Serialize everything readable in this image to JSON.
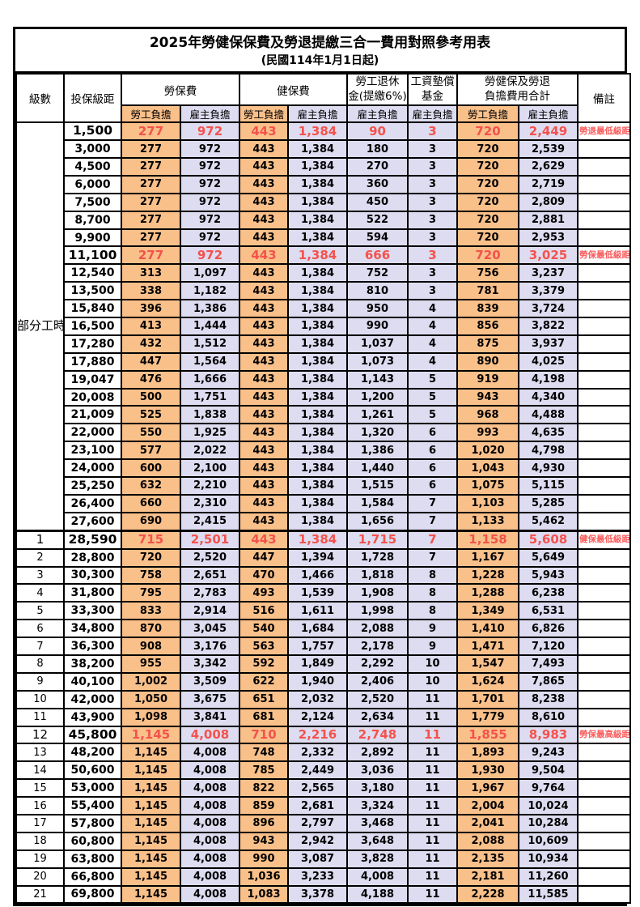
{
  "title": "2025年勞健保保費及勞退提繳三合一費用對照參考用表",
  "subtitle": "(民國114年1月1日起)",
  "colors": {
    "employee_bg": "#F9C08A",
    "employer_bg": "#DEDCF0",
    "highlight_text": "#F4524C",
    "remark_text": "#FB5A5A",
    "border": "#000000"
  },
  "table": {
    "headers": {
      "level": "級數",
      "bracket": "投保級距",
      "labor_ins": "勞保費",
      "health_ins": "健保費",
      "pension_line1": "勞工退休",
      "pension_line2": "金(提繳6%)",
      "wage_fund_line1": "工資墊償",
      "wage_fund_line2": "基金",
      "total_line1": "勞健保及勞退",
      "total_line2": "負擔費用合計",
      "remark": "備註",
      "employee": "勞工負擔",
      "employer": "雇主負擔"
    },
    "part_time_label": "部分工時",
    "part_time_rowspan": 23,
    "rows": [
      {
        "level": "",
        "bracket": "1,500",
        "values": [
          "277",
          "972",
          "443",
          "1,384",
          "90",
          "3",
          "720",
          "2,449"
        ],
        "remark": "勞退最低級距",
        "highlight": true
      },
      {
        "level": "",
        "bracket": "3,000",
        "values": [
          "277",
          "972",
          "443",
          "1,384",
          "180",
          "3",
          "720",
          "2,539"
        ],
        "remark": "",
        "highlight": false
      },
      {
        "level": "",
        "bracket": "4,500",
        "values": [
          "277",
          "972",
          "443",
          "1,384",
          "270",
          "3",
          "720",
          "2,629"
        ],
        "remark": "",
        "highlight": false
      },
      {
        "level": "",
        "bracket": "6,000",
        "values": [
          "277",
          "972",
          "443",
          "1,384",
          "360",
          "3",
          "720",
          "2,719"
        ],
        "remark": "",
        "highlight": false
      },
      {
        "level": "",
        "bracket": "7,500",
        "values": [
          "277",
          "972",
          "443",
          "1,384",
          "450",
          "3",
          "720",
          "2,809"
        ],
        "remark": "",
        "highlight": false
      },
      {
        "level": "",
        "bracket": "8,700",
        "values": [
          "277",
          "972",
          "443",
          "1,384",
          "522",
          "3",
          "720",
          "2,881"
        ],
        "remark": "",
        "highlight": false
      },
      {
        "level": "",
        "bracket": "9,900",
        "values": [
          "277",
          "972",
          "443",
          "1,384",
          "594",
          "3",
          "720",
          "2,953"
        ],
        "remark": "",
        "highlight": false
      },
      {
        "level": "",
        "bracket": "11,100",
        "values": [
          "277",
          "972",
          "443",
          "1,384",
          "666",
          "3",
          "720",
          "3,025"
        ],
        "remark": "勞保最低級距",
        "highlight": true
      },
      {
        "level": "",
        "bracket": "12,540",
        "values": [
          "313",
          "1,097",
          "443",
          "1,384",
          "752",
          "3",
          "756",
          "3,237"
        ],
        "remark": "",
        "highlight": false
      },
      {
        "level": "",
        "bracket": "13,500",
        "values": [
          "338",
          "1,182",
          "443",
          "1,384",
          "810",
          "3",
          "781",
          "3,379"
        ],
        "remark": "",
        "highlight": false
      },
      {
        "level": "",
        "bracket": "15,840",
        "values": [
          "396",
          "1,386",
          "443",
          "1,384",
          "950",
          "4",
          "839",
          "3,724"
        ],
        "remark": "",
        "highlight": false
      },
      {
        "level": "",
        "bracket": "16,500",
        "values": [
          "413",
          "1,444",
          "443",
          "1,384",
          "990",
          "4",
          "856",
          "3,822"
        ],
        "remark": "",
        "highlight": false
      },
      {
        "level": "",
        "bracket": "17,280",
        "values": [
          "432",
          "1,512",
          "443",
          "1,384",
          "1,037",
          "4",
          "875",
          "3,937"
        ],
        "remark": "",
        "highlight": false
      },
      {
        "level": "",
        "bracket": "17,880",
        "values": [
          "447",
          "1,564",
          "443",
          "1,384",
          "1,073",
          "4",
          "890",
          "4,025"
        ],
        "remark": "",
        "highlight": false
      },
      {
        "level": "",
        "bracket": "19,047",
        "values": [
          "476",
          "1,666",
          "443",
          "1,384",
          "1,143",
          "5",
          "919",
          "4,198"
        ],
        "remark": "",
        "highlight": false
      },
      {
        "level": "",
        "bracket": "20,008",
        "values": [
          "500",
          "1,751",
          "443",
          "1,384",
          "1,200",
          "5",
          "943",
          "4,340"
        ],
        "remark": "",
        "highlight": false
      },
      {
        "level": "",
        "bracket": "21,009",
        "values": [
          "525",
          "1,838",
          "443",
          "1,384",
          "1,261",
          "5",
          "968",
          "4,488"
        ],
        "remark": "",
        "highlight": false
      },
      {
        "level": "",
        "bracket": "22,000",
        "values": [
          "550",
          "1,925",
          "443",
          "1,384",
          "1,320",
          "6",
          "993",
          "4,635"
        ],
        "remark": "",
        "highlight": false
      },
      {
        "level": "",
        "bracket": "23,100",
        "values": [
          "577",
          "2,022",
          "443",
          "1,384",
          "1,386",
          "6",
          "1,020",
          "4,798"
        ],
        "remark": "",
        "highlight": false
      },
      {
        "level": "",
        "bracket": "24,000",
        "values": [
          "600",
          "2,100",
          "443",
          "1,384",
          "1,440",
          "6",
          "1,043",
          "4,930"
        ],
        "remark": "",
        "highlight": false
      },
      {
        "level": "",
        "bracket": "25,250",
        "values": [
          "632",
          "2,210",
          "443",
          "1,384",
          "1,515",
          "6",
          "1,075",
          "5,115"
        ],
        "remark": "",
        "highlight": false
      },
      {
        "level": "",
        "bracket": "26,400",
        "values": [
          "660",
          "2,310",
          "443",
          "1,384",
          "1,584",
          "7",
          "1,103",
          "5,285"
        ],
        "remark": "",
        "highlight": false
      },
      {
        "level": "",
        "bracket": "27,600",
        "values": [
          "690",
          "2,415",
          "443",
          "1,384",
          "1,656",
          "7",
          "1,133",
          "5,462"
        ],
        "remark": "",
        "highlight": false
      },
      {
        "level": "1",
        "bracket": "28,590",
        "values": [
          "715",
          "2,501",
          "443",
          "1,384",
          "1,715",
          "7",
          "1,158",
          "5,608"
        ],
        "remark": "健保最低級距",
        "highlight": true
      },
      {
        "level": "2",
        "bracket": "28,800",
        "values": [
          "720",
          "2,520",
          "447",
          "1,394",
          "1,728",
          "7",
          "1,167",
          "5,649"
        ],
        "remark": "",
        "highlight": false
      },
      {
        "level": "3",
        "bracket": "30,300",
        "values": [
          "758",
          "2,651",
          "470",
          "1,466",
          "1,818",
          "8",
          "1,228",
          "5,943"
        ],
        "remark": "",
        "highlight": false
      },
      {
        "level": "4",
        "bracket": "31,800",
        "values": [
          "795",
          "2,783",
          "493",
          "1,539",
          "1,908",
          "8",
          "1,288",
          "6,238"
        ],
        "remark": "",
        "highlight": false
      },
      {
        "level": "5",
        "bracket": "33,300",
        "values": [
          "833",
          "2,914",
          "516",
          "1,611",
          "1,998",
          "8",
          "1,349",
          "6,531"
        ],
        "remark": "",
        "highlight": false
      },
      {
        "level": "6",
        "bracket": "34,800",
        "values": [
          "870",
          "3,045",
          "540",
          "1,684",
          "2,088",
          "9",
          "1,410",
          "6,826"
        ],
        "remark": "",
        "highlight": false
      },
      {
        "level": "7",
        "bracket": "36,300",
        "values": [
          "908",
          "3,176",
          "563",
          "1,757",
          "2,178",
          "9",
          "1,471",
          "7,120"
        ],
        "remark": "",
        "highlight": false
      },
      {
        "level": "8",
        "bracket": "38,200",
        "values": [
          "955",
          "3,342",
          "592",
          "1,849",
          "2,292",
          "10",
          "1,547",
          "7,493"
        ],
        "remark": "",
        "highlight": false
      },
      {
        "level": "9",
        "bracket": "40,100",
        "values": [
          "1,002",
          "3,509",
          "622",
          "1,940",
          "2,406",
          "10",
          "1,624",
          "7,865"
        ],
        "remark": "",
        "highlight": false
      },
      {
        "level": "10",
        "bracket": "42,000",
        "values": [
          "1,050",
          "3,675",
          "651",
          "2,032",
          "2,520",
          "11",
          "1,701",
          "8,238"
        ],
        "remark": "",
        "highlight": false
      },
      {
        "level": "11",
        "bracket": "43,900",
        "values": [
          "1,098",
          "3,841",
          "681",
          "2,124",
          "2,634",
          "11",
          "1,779",
          "8,610"
        ],
        "remark": "",
        "highlight": false
      },
      {
        "level": "12",
        "bracket": "45,800",
        "values": [
          "1,145",
          "4,008",
          "710",
          "2,216",
          "2,748",
          "11",
          "1,855",
          "8,983"
        ],
        "remark": "勞保最高級距",
        "highlight": true
      },
      {
        "level": "13",
        "bracket": "48,200",
        "values": [
          "1,145",
          "4,008",
          "748",
          "2,332",
          "2,892",
          "11",
          "1,893",
          "9,243"
        ],
        "remark": "",
        "highlight": false
      },
      {
        "level": "14",
        "bracket": "50,600",
        "values": [
          "1,145",
          "4,008",
          "785",
          "2,449",
          "3,036",
          "11",
          "1,930",
          "9,504"
        ],
        "remark": "",
        "highlight": false
      },
      {
        "level": "15",
        "bracket": "53,000",
        "values": [
          "1,145",
          "4,008",
          "822",
          "2,565",
          "3,180",
          "11",
          "1,967",
          "9,764"
        ],
        "remark": "",
        "highlight": false
      },
      {
        "level": "16",
        "bracket": "55,400",
        "values": [
          "1,145",
          "4,008",
          "859",
          "2,681",
          "3,324",
          "11",
          "2,004",
          "10,024"
        ],
        "remark": "",
        "highlight": false
      },
      {
        "level": "17",
        "bracket": "57,800",
        "values": [
          "1,145",
          "4,008",
          "896",
          "2,797",
          "3,468",
          "11",
          "2,041",
          "10,284"
        ],
        "remark": "",
        "highlight": false
      },
      {
        "level": "18",
        "bracket": "60,800",
        "values": [
          "1,145",
          "4,008",
          "943",
          "2,942",
          "3,648",
          "11",
          "2,088",
          "10,609"
        ],
        "remark": "",
        "highlight": false
      },
      {
        "level": "19",
        "bracket": "63,800",
        "values": [
          "1,145",
          "4,008",
          "990",
          "3,087",
          "3,828",
          "11",
          "2,135",
          "10,934"
        ],
        "remark": "",
        "highlight": false
      },
      {
        "level": "20",
        "bracket": "66,800",
        "values": [
          "1,145",
          "4,008",
          "1,036",
          "3,233",
          "4,008",
          "11",
          "2,181",
          "11,260"
        ],
        "remark": "",
        "highlight": false
      },
      {
        "level": "21",
        "bracket": "69,800",
        "values": [
          "1,145",
          "4,008",
          "1,083",
          "3,378",
          "4,188",
          "11",
          "2,228",
          "11,585"
        ],
        "remark": "",
        "highlight": false
      }
    ]
  }
}
